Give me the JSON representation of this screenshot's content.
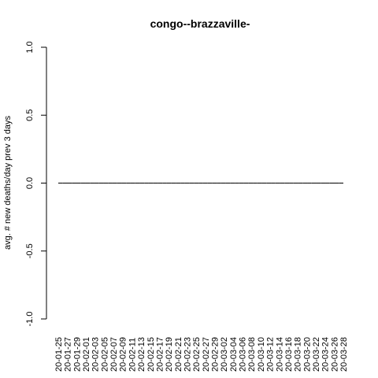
{
  "chart_data": {
    "type": "line",
    "title": "congo--brazzaville-",
    "xlabel": "",
    "ylabel": "avg. # new deaths/day prev  3  days",
    "ylim": [
      -1.0,
      1.0
    ],
    "yticks": [
      "-1.0",
      "-0.5",
      "0.0",
      "0.5",
      "1.0"
    ],
    "grid": false,
    "x": [
      "20-01-25",
      "20-01-26",
      "20-01-27",
      "20-01-28",
      "20-01-29",
      "20-01-30",
      "20-01-31",
      "20-02-01",
      "20-02-02",
      "20-02-03",
      "20-02-04",
      "20-02-05",
      "20-02-06",
      "20-02-07",
      "20-02-08",
      "20-02-09",
      "20-02-10",
      "20-02-11",
      "20-02-12",
      "20-02-13",
      "20-02-14",
      "20-02-15",
      "20-02-16",
      "20-02-17",
      "20-02-18",
      "20-02-19",
      "20-02-20",
      "20-02-21",
      "20-02-22",
      "20-02-23",
      "20-02-24",
      "20-02-25",
      "20-02-26",
      "20-02-27",
      "20-02-28",
      "20-02-29",
      "20-03-01",
      "20-03-02",
      "20-03-03",
      "20-03-04",
      "20-03-05",
      "20-03-06",
      "20-03-07",
      "20-03-08",
      "20-03-09",
      "20-03-10",
      "20-03-11",
      "20-03-12",
      "20-03-13",
      "20-03-14",
      "20-03-15",
      "20-03-16",
      "20-03-17",
      "20-03-18",
      "20-03-19",
      "20-03-20",
      "20-03-21",
      "20-03-22",
      "20-03-23",
      "20-03-24",
      "20-03-25",
      "20-03-26",
      "20-03-27",
      "20-03-28"
    ],
    "xtick_labels": [
      "20-01-25",
      "20-01-27",
      "20-01-29",
      "20-02-01",
      "20-02-03",
      "20-02-05",
      "20-02-07",
      "20-02-09",
      "20-02-11",
      "20-02-13",
      "20-02-15",
      "20-02-17",
      "20-02-19",
      "20-02-21",
      "20-02-23",
      "20-02-25",
      "20-02-27",
      "20-02-29",
      "20-03-02",
      "20-03-04",
      "20-03-06",
      "20-03-08",
      "20-03-10",
      "20-03-12",
      "20-03-14",
      "20-03-16",
      "20-03-18",
      "20-03-20",
      "20-03-22",
      "20-03-24",
      "20-03-26",
      "20-03-28"
    ],
    "series": [
      {
        "values": [
          0,
          0,
          0,
          0,
          0,
          0,
          0,
          0,
          0,
          0,
          0,
          0,
          0,
          0,
          0,
          0,
          0,
          0,
          0,
          0,
          0,
          0,
          0,
          0,
          0,
          0,
          0,
          0,
          0,
          0,
          0,
          0,
          0,
          0,
          0,
          0,
          0,
          0,
          0,
          0,
          0,
          0,
          0,
          0,
          0,
          0,
          0,
          0,
          0,
          0,
          0,
          0,
          0,
          0,
          0,
          0,
          0,
          0,
          0,
          0,
          0,
          0,
          0,
          0
        ],
        "color": "#000000"
      }
    ]
  }
}
